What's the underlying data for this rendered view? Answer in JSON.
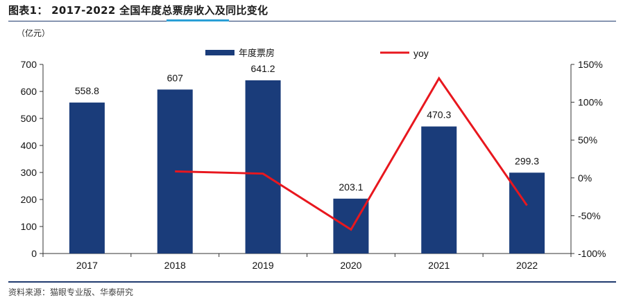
{
  "header": {
    "title": "图表1：  2017-2022 全国年度总票房收入及同比变化",
    "source": "资料来源：猫眼专业版、华泰研究"
  },
  "chart_data": {
    "type": "bar",
    "categories": [
      "2017",
      "2018",
      "2019",
      "2020",
      "2021",
      "2022"
    ],
    "series": [
      {
        "name": "年度票房",
        "kind": "bar",
        "axis": "left",
        "values": [
          558.8,
          607,
          641.2,
          203.1,
          470.3,
          299.3
        ],
        "labels": [
          "558.8",
          "607",
          "641.2",
          "203.1",
          "470.3",
          "299.3"
        ],
        "color": "#1a3c7a"
      },
      {
        "name": "yoy",
        "kind": "line",
        "axis": "right",
        "values": [
          null,
          8.6,
          5.6,
          -68.3,
          131.6,
          -36.4
        ],
        "color": "#e8171e"
      }
    ],
    "ylabel": "（亿元）",
    "ylim": [
      0,
      700
    ],
    "yticks": [
      "0",
      "100",
      "200",
      "300",
      "400",
      "500",
      "600",
      "700"
    ],
    "y2lim": [
      -100,
      150
    ],
    "y2ticks": [
      "-100%",
      "-50%",
      "0%",
      "50%",
      "100%",
      "150%"
    ],
    "legend": "top",
    "grid": false
  }
}
